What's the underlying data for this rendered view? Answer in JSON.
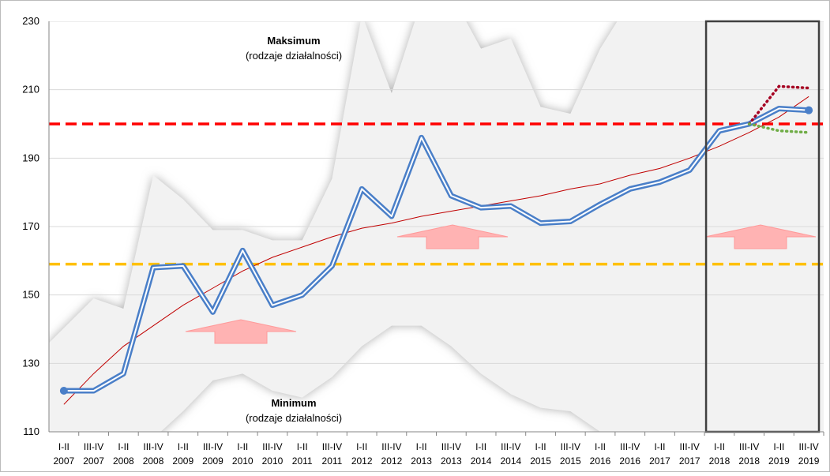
{
  "chart_data": {
    "type": "line",
    "categories": [
      [
        "I-II",
        "2007"
      ],
      [
        "III-IV",
        "2007"
      ],
      [
        "I-II",
        "2008"
      ],
      [
        "III-IV",
        "2008"
      ],
      [
        "I-II",
        "2009"
      ],
      [
        "III-IV",
        "2009"
      ],
      [
        "I-II",
        "2010"
      ],
      [
        "III-IV",
        "2010"
      ],
      [
        "I-II",
        "2011"
      ],
      [
        "III-IV",
        "2011"
      ],
      [
        "I-II",
        "2012"
      ],
      [
        "III-IV",
        "2012"
      ],
      [
        "I-II",
        "2013"
      ],
      [
        "III-IV",
        "2013"
      ],
      [
        "I-II",
        "2014"
      ],
      [
        "III-IV",
        "2014"
      ],
      [
        "I-II",
        "2015"
      ],
      [
        "III-IV",
        "2015"
      ],
      [
        "I-II",
        "2016"
      ],
      [
        "III-IV",
        "2016"
      ],
      [
        "I-II",
        "2017"
      ],
      [
        "III-IV",
        "2017"
      ],
      [
        "I-II",
        "2018"
      ],
      [
        "III-IV",
        "2018"
      ],
      [
        "I-II",
        "2019"
      ],
      [
        "III-IV",
        "2019"
      ]
    ],
    "ylim": [
      110,
      230
    ],
    "yticks": [
      110,
      130,
      150,
      170,
      190,
      210,
      230
    ],
    "range_band": {
      "color": "#f2f2f2",
      "max": [
        136,
        149,
        146,
        185,
        178,
        169,
        169,
        166,
        166,
        184,
        232,
        209,
        236,
        238,
        222,
        225,
        205,
        203,
        222,
        236,
        240,
        240,
        240,
        240,
        240,
        240
      ],
      "min": [
        100,
        104,
        106,
        108,
        116,
        125,
        127,
        122,
        120,
        126,
        135,
        141,
        141,
        135,
        127,
        121,
        117,
        116,
        110,
        104,
        100,
        100,
        100,
        100,
        100,
        100
      ]
    },
    "annotations": [
      {
        "text": "Maksimum",
        "sub": "(rodzaje działalności)"
      },
      {
        "text": "Minimum",
        "sub": "(rodzaje działalności)"
      }
    ],
    "reference_lines": [
      {
        "value": 200,
        "color": "#ff0000"
      },
      {
        "value": 159,
        "color": "#ffc000"
      }
    ],
    "series": [
      {
        "style": "trend",
        "color": "#c00000",
        "values": [
          118,
          127,
          135,
          141,
          147,
          152,
          157,
          161,
          164,
          167,
          169.5,
          171,
          173,
          174.5,
          176,
          177.5,
          179,
          181,
          182.5,
          185,
          187,
          190,
          193.5,
          197.5,
          202,
          208
        ]
      },
      {
        "style": "main",
        "color": "#4a7fc8",
        "values": [
          122,
          122,
          127,
          158,
          158.5,
          145,
          163,
          147,
          150,
          158.5,
          181,
          173,
          196,
          179,
          175.5,
          176,
          171,
          171.5,
          176.5,
          181,
          183,
          186.5,
          198,
          200,
          204.5,
          204
        ]
      },
      {
        "style": "dotted",
        "color": "#a50021",
        "values": [
          null,
          null,
          null,
          null,
          null,
          null,
          null,
          null,
          null,
          null,
          null,
          null,
          null,
          null,
          null,
          null,
          null,
          null,
          null,
          null,
          null,
          null,
          null,
          200,
          211,
          210.5
        ]
      },
      {
        "style": "dotted",
        "color": "#70ad47",
        "values": [
          null,
          null,
          null,
          null,
          null,
          null,
          null,
          null,
          null,
          null,
          null,
          null,
          null,
          null,
          null,
          null,
          null,
          null,
          null,
          null,
          null,
          null,
          null,
          200,
          198,
          197.5
        ]
      }
    ]
  }
}
